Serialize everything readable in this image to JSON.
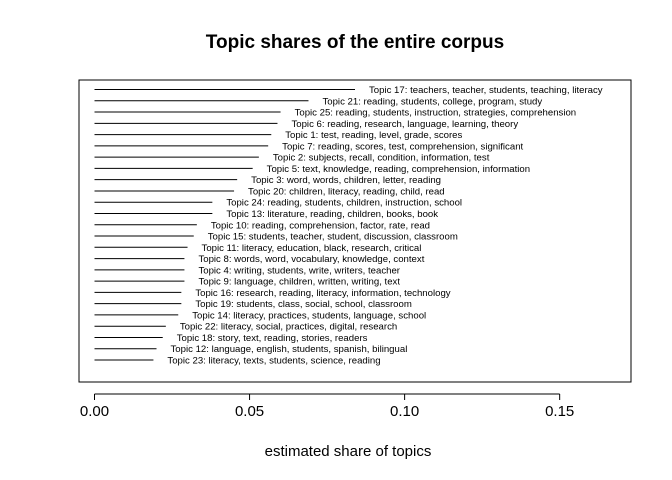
{
  "chart_data": {
    "type": "bar",
    "orientation": "horizontal",
    "title": "Topic shares of the entire corpus",
    "xlabel": "estimated share of topics",
    "ylabel": "",
    "xlim": [
      -0.005,
      0.173
    ],
    "xticks": [
      0.0,
      0.05,
      0.1,
      0.15
    ],
    "xtick_labels": [
      "0.00",
      "0.05",
      "0.10",
      "0.15"
    ],
    "grid": false,
    "legend": "none",
    "categories": [
      "Topic 17: teachers, teacher, students, teaching, literacy",
      "Topic 21: reading, students, college, program, study",
      "Topic 25: reading, students, instruction, strategies, comprehension",
      "Topic 6: reading, research, language, learning, theory",
      "Topic 1: test, reading, level, grade, scores",
      "Topic 7: reading, scores, test, comprehension, significant",
      "Topic 2: subjects, recall, condition, information, test",
      "Topic 5: text, knowledge, reading, comprehension, information",
      "Topic 3: word, words, children, letter, reading",
      "Topic 20: children, literacy, reading, child, read",
      "Topic 24: reading, students, children, instruction, school",
      "Topic 13: literature, reading, children, books, book",
      "Topic 10: reading, comprehension, factor, rate, read",
      "Topic 15: students, teacher, student, discussion, classroom",
      "Topic 11: literacy, education, black, research, critical",
      "Topic 8: words, word, vocabulary, knowledge, context",
      "Topic 4: writing, students, write, writers, teacher",
      "Topic 9: language, children, written, writing, text",
      "Topic 16: research, reading, literacy, information, technology",
      "Topic 19: students, class, social, school, classroom",
      "Topic 14: literacy, practices, students, language, school",
      "Topic 22: literacy, social, practices, digital, research",
      "Topic 18: story, text, reading, stories, readers",
      "Topic 12: language, english, students, spanish, bilingual",
      "Topic 23: literacy, texts, students, science, reading"
    ],
    "values": [
      0.084,
      0.069,
      0.06,
      0.059,
      0.057,
      0.056,
      0.053,
      0.051,
      0.046,
      0.045,
      0.038,
      0.038,
      0.033,
      0.032,
      0.03,
      0.029,
      0.029,
      0.029,
      0.028,
      0.028,
      0.027,
      0.023,
      0.022,
      0.02,
      0.019
    ]
  }
}
